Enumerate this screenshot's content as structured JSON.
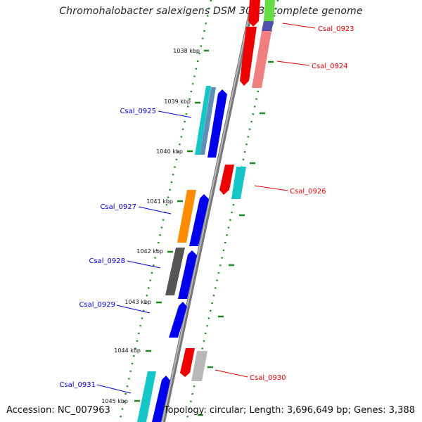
{
  "title": "Chromohalobacter salexigens DSM 3043, complete genome",
  "footer": {
    "accession": "Accession: NC_007963",
    "topology": "Topology: circular; Length: 3,696,649 bp; Genes: 3,388"
  },
  "colors": {
    "backbone": "#8a8a8a",
    "tick": "#1e8a1e",
    "forward_label": "#0000cc",
    "reverse_label": "#dd0000"
  },
  "ticks": [
    {
      "label": "1038 kbp"
    },
    {
      "label": "1039 kbp"
    },
    {
      "label": "1040 kbp"
    },
    {
      "label": "1041 kbp"
    },
    {
      "label": "1042 kbp"
    },
    {
      "label": "1043 kbp"
    },
    {
      "label": "1044 kbp"
    },
    {
      "label": "1045 kbp"
    }
  ],
  "labels": [
    {
      "text": "Csal_0923",
      "strand": "reverse"
    },
    {
      "text": "Csal_0924",
      "strand": "reverse"
    },
    {
      "text": "Csal_0925",
      "strand": "forward"
    },
    {
      "text": "Csal_0926",
      "strand": "reverse"
    },
    {
      "text": "Csal_0927",
      "strand": "forward"
    },
    {
      "text": "Csal_0928",
      "strand": "forward"
    },
    {
      "text": "Csal_0929",
      "strand": "forward"
    },
    {
      "text": "Csal_0930",
      "strand": "reverse"
    },
    {
      "text": "Csal_0931",
      "strand": "forward"
    }
  ]
}
